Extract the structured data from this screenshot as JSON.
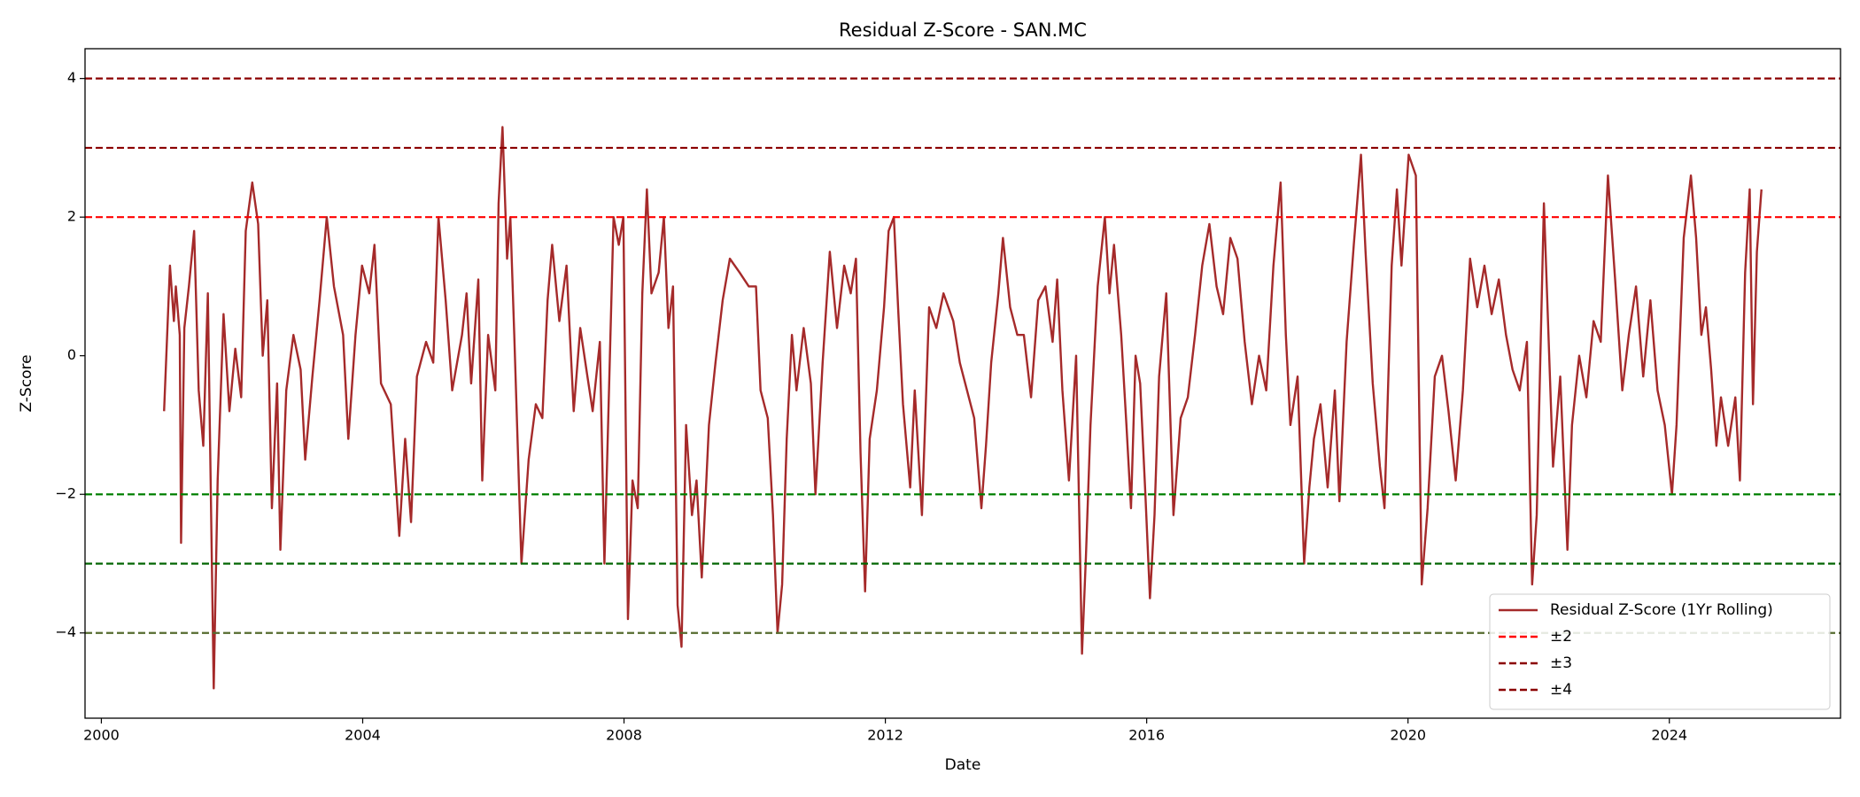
{
  "chart_data": {
    "type": "line",
    "title": "Residual Z-Score - SAN.MC",
    "xlabel": "Date",
    "ylabel": "Z-Score",
    "xlim": [
      1999.75,
      2026.62
    ],
    "xticks": [
      2000,
      2004,
      2008,
      2012,
      2016,
      2020,
      2024
    ],
    "ylim": [
      -5.23,
      4.43
    ],
    "yticks": [
      {
        "value": -4,
        "label": "−4"
      },
      {
        "value": -2,
        "label": "−2"
      },
      0,
      2,
      4
    ],
    "legend_position": "lower right",
    "series": [
      {
        "name": "Residual Z-Score (1Yr Rolling)",
        "color": "#a52a2a",
        "x": [
          2000.96,
          2001.02,
          2001.05,
          2001.11,
          2001.14,
          2001.2,
          2001.22,
          2001.27,
          2001.34,
          2001.42,
          2001.49,
          2001.56,
          2001.63,
          2001.72,
          2001.78,
          2001.87,
          2001.96,
          2002.05,
          2002.14,
          2002.21,
          2002.31,
          2002.4,
          2002.47,
          2002.54,
          2002.61,
          2002.69,
          2002.74,
          2002.83,
          2002.94,
          2003.05,
          2003.12,
          2003.23,
          2003.34,
          2003.45,
          2003.56,
          2003.7,
          2003.78,
          2003.89,
          2003.99,
          2004.1,
          2004.18,
          2004.28,
          2004.43,
          2004.56,
          2004.65,
          2004.74,
          2004.83,
          2004.97,
          2005.08,
          2005.16,
          2005.27,
          2005.37,
          2005.52,
          2005.59,
          2005.66,
          2005.77,
          2005.83,
          2005.92,
          2006.03,
          2006.08,
          2006.14,
          2006.21,
          2006.26,
          2006.32,
          2006.43,
          2006.54,
          2006.65,
          2006.75,
          2006.83,
          2006.9,
          2007.01,
          2007.12,
          2007.23,
          2007.33,
          2007.44,
          2007.52,
          2007.63,
          2007.7,
          2007.77,
          2007.84,
          2007.92,
          2007.99,
          2008.06,
          2008.13,
          2008.21,
          2008.28,
          2008.35,
          2008.42,
          2008.53,
          2008.61,
          2008.68,
          2008.75,
          2008.82,
          2008.88,
          2008.95,
          2009.04,
          2009.11,
          2009.19,
          2009.3,
          2009.4,
          2009.51,
          2009.62,
          2009.77,
          2009.91,
          2010.02,
          2010.09,
          2010.2,
          2010.28,
          2010.35,
          2010.42,
          2010.49,
          2010.57,
          2010.64,
          2010.75,
          2010.86,
          2010.93,
          2011.04,
          2011.15,
          2011.26,
          2011.37,
          2011.47,
          2011.55,
          2011.62,
          2011.69,
          2011.76,
          2011.87,
          2011.98,
          2012.05,
          2012.13,
          2012.2,
          2012.27,
          2012.38,
          2012.45,
          2012.56,
          2012.67,
          2012.78,
          2012.89,
          2013.04,
          2013.14,
          2013.25,
          2013.36,
          2013.47,
          2013.54,
          2013.62,
          2013.73,
          2013.8,
          2013.91,
          2014.02,
          2014.12,
          2014.23,
          2014.34,
          2014.45,
          2014.56,
          2014.63,
          2014.71,
          2014.81,
          2014.92,
          2015.01,
          2015.07,
          2015.14,
          2015.25,
          2015.36,
          2015.43,
          2015.5,
          2015.61,
          2015.69,
          2015.76,
          2015.83,
          2015.9,
          2015.98,
          2016.05,
          2016.12,
          2016.19,
          2016.3,
          2016.41,
          2016.52,
          2016.63,
          2016.74,
          2016.85,
          2016.96,
          2017.07,
          2017.17,
          2017.28,
          2017.39,
          2017.5,
          2017.61,
          2017.72,
          2017.83,
          2017.94,
          2018.05,
          2018.13,
          2018.2,
          2018.31,
          2018.41,
          2018.49,
          2018.56,
          2018.66,
          2018.77,
          2018.88,
          2018.95,
          2019.06,
          2019.17,
          2019.28,
          2019.35,
          2019.46,
          2019.57,
          2019.64,
          2019.75,
          2019.83,
          2019.9,
          2020.01,
          2020.12,
          2020.21,
          2020.3,
          2020.41,
          2020.52,
          2020.62,
          2020.73,
          2020.84,
          2020.95,
          2021.06,
          2021.17,
          2021.28,
          2021.39,
          2021.5,
          2021.6,
          2021.71,
          2021.82,
          2021.9,
          2021.97,
          2022.08,
          2022.15,
          2022.22,
          2022.33,
          2022.44,
          2022.51,
          2022.62,
          2022.73,
          2022.84,
          2022.95,
          2023.06,
          2023.17,
          2023.28,
          2023.38,
          2023.49,
          2023.6,
          2023.71,
          2023.82,
          2023.93,
          2024.04,
          2024.11,
          2024.22,
          2024.33,
          2024.41,
          2024.49,
          2024.56,
          2024.64,
          2024.72,
          2024.79,
          2024.9,
          2025.01,
          2025.08,
          2025.16,
          2025.23,
          2025.28,
          2025.34,
          2025.41
        ],
        "values": [
          -0.8,
          0.6,
          1.3,
          0.5,
          1.0,
          0.3,
          -2.7,
          0.4,
          1.0,
          1.8,
          -0.5,
          -1.3,
          0.9,
          -4.8,
          -1.8,
          0.6,
          -0.8,
          0.1,
          -0.6,
          1.8,
          2.5,
          1.9,
          0.0,
          0.8,
          -2.2,
          -0.4,
          -2.8,
          -0.5,
          0.3,
          -0.2,
          -1.5,
          -0.3,
          0.8,
          2.0,
          1.0,
          0.3,
          -1.2,
          0.3,
          1.3,
          0.9,
          1.6,
          -0.4,
          -0.7,
          -2.6,
          -1.2,
          -2.4,
          -0.3,
          0.2,
          -0.1,
          2.0,
          0.8,
          -0.5,
          0.3,
          0.9,
          -0.4,
          1.1,
          -1.8,
          0.3,
          -0.5,
          2.2,
          3.3,
          1.4,
          2.0,
          0.3,
          -3.0,
          -1.5,
          -0.7,
          -0.9,
          0.8,
          1.6,
          0.5,
          1.3,
          -0.8,
          0.4,
          -0.3,
          -0.8,
          0.2,
          -3.0,
          -0.5,
          2.0,
          1.6,
          2.0,
          -3.8,
          -1.8,
          -2.2,
          0.9,
          2.4,
          0.9,
          1.2,
          2.0,
          0.4,
          1.0,
          -3.6,
          -4.2,
          -1.0,
          -2.3,
          -1.8,
          -3.2,
          -1.0,
          -0.1,
          0.8,
          1.4,
          1.2,
          1.0,
          1.0,
          -0.5,
          -0.9,
          -2.3,
          -4.0,
          -3.3,
          -1.2,
          0.3,
          -0.5,
          0.4,
          -0.4,
          -2.0,
          -0.1,
          1.5,
          0.4,
          1.3,
          0.9,
          1.4,
          -1.4,
          -3.4,
          -1.2,
          -0.5,
          0.7,
          1.8,
          2.0,
          0.6,
          -0.7,
          -1.9,
          -0.5,
          -2.3,
          0.7,
          0.4,
          0.9,
          0.5,
          -0.1,
          -0.5,
          -0.9,
          -2.2,
          -1.3,
          -0.1,
          0.9,
          1.7,
          0.7,
          0.3,
          0.3,
          -0.6,
          0.8,
          1.0,
          0.2,
          1.1,
          -0.5,
          -1.8,
          0.0,
          -4.3,
          -2.9,
          -1.0,
          1.0,
          2.0,
          0.9,
          1.6,
          0.3,
          -1.0,
          -2.2,
          0.0,
          -0.4,
          -2.0,
          -3.5,
          -2.3,
          -0.3,
          0.9,
          -2.3,
          -0.9,
          -0.6,
          0.3,
          1.3,
          1.9,
          1.0,
          0.6,
          1.7,
          1.4,
          0.2,
          -0.7,
          0.0,
          -0.5,
          1.3,
          2.5,
          0.3,
          -1.0,
          -0.3,
          -3.0,
          -1.9,
          -1.2,
          -0.7,
          -1.9,
          -0.5,
          -2.1,
          0.2,
          1.6,
          2.9,
          1.5,
          -0.4,
          -1.6,
          -2.2,
          1.3,
          2.4,
          1.3,
          2.9,
          2.6,
          -3.3,
          -2.2,
          -0.3,
          0.0,
          -0.8,
          -1.8,
          -0.5,
          1.4,
          0.7,
          1.3,
          0.6,
          1.1,
          0.3,
          -0.2,
          -0.5,
          0.2,
          -3.3,
          -2.3,
          2.2,
          0.3,
          -1.6,
          -0.3,
          -2.8,
          -1.0,
          0.0,
          -0.6,
          0.5,
          0.2,
          2.6,
          1.1,
          -0.5,
          0.3,
          1.0,
          -0.3,
          0.8,
          -0.5,
          -1.0,
          -2.0,
          -1.0,
          1.7,
          2.6,
          1.7,
          0.3,
          0.7,
          -0.2,
          -1.3,
          -0.6,
          -1.3,
          -0.6,
          -1.8,
          1.2,
          2.4,
          -0.7,
          1.5,
          2.4
        ]
      }
    ],
    "reference_lines": [
      {
        "name": "±2",
        "values": [
          2,
          -2
        ],
        "colors": [
          "#ff0000",
          "#008000"
        ]
      },
      {
        "name": "±3",
        "values": [
          3,
          -3
        ],
        "colors": [
          "#8b0000",
          "#006400"
        ]
      },
      {
        "name": "±4",
        "values": [
          4,
          -4
        ],
        "colors": [
          "#8b0000",
          "#556b2f"
        ]
      }
    ]
  }
}
